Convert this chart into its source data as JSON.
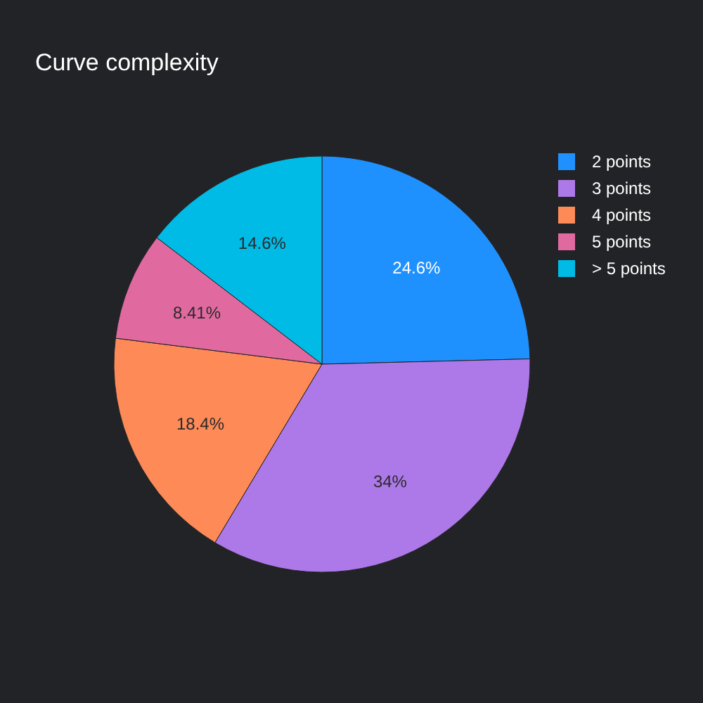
{
  "chart_data": {
    "type": "pie",
    "title": "Curve complexity",
    "categories": [
      "2 points",
      "3 points",
      "4 points",
      "5 points",
      "> 5 points"
    ],
    "values": [
      24.6,
      34,
      18.4,
      8.41,
      14.6
    ],
    "colors": [
      "#1f91ff",
      "#ad78e8",
      "#fd8a57",
      "#e06aa0",
      "#00bbe6"
    ],
    "value_labels": [
      "24.6%",
      "34%",
      "18.4%",
      "8.41%",
      "14.6%"
    ],
    "legend": "top right"
  }
}
